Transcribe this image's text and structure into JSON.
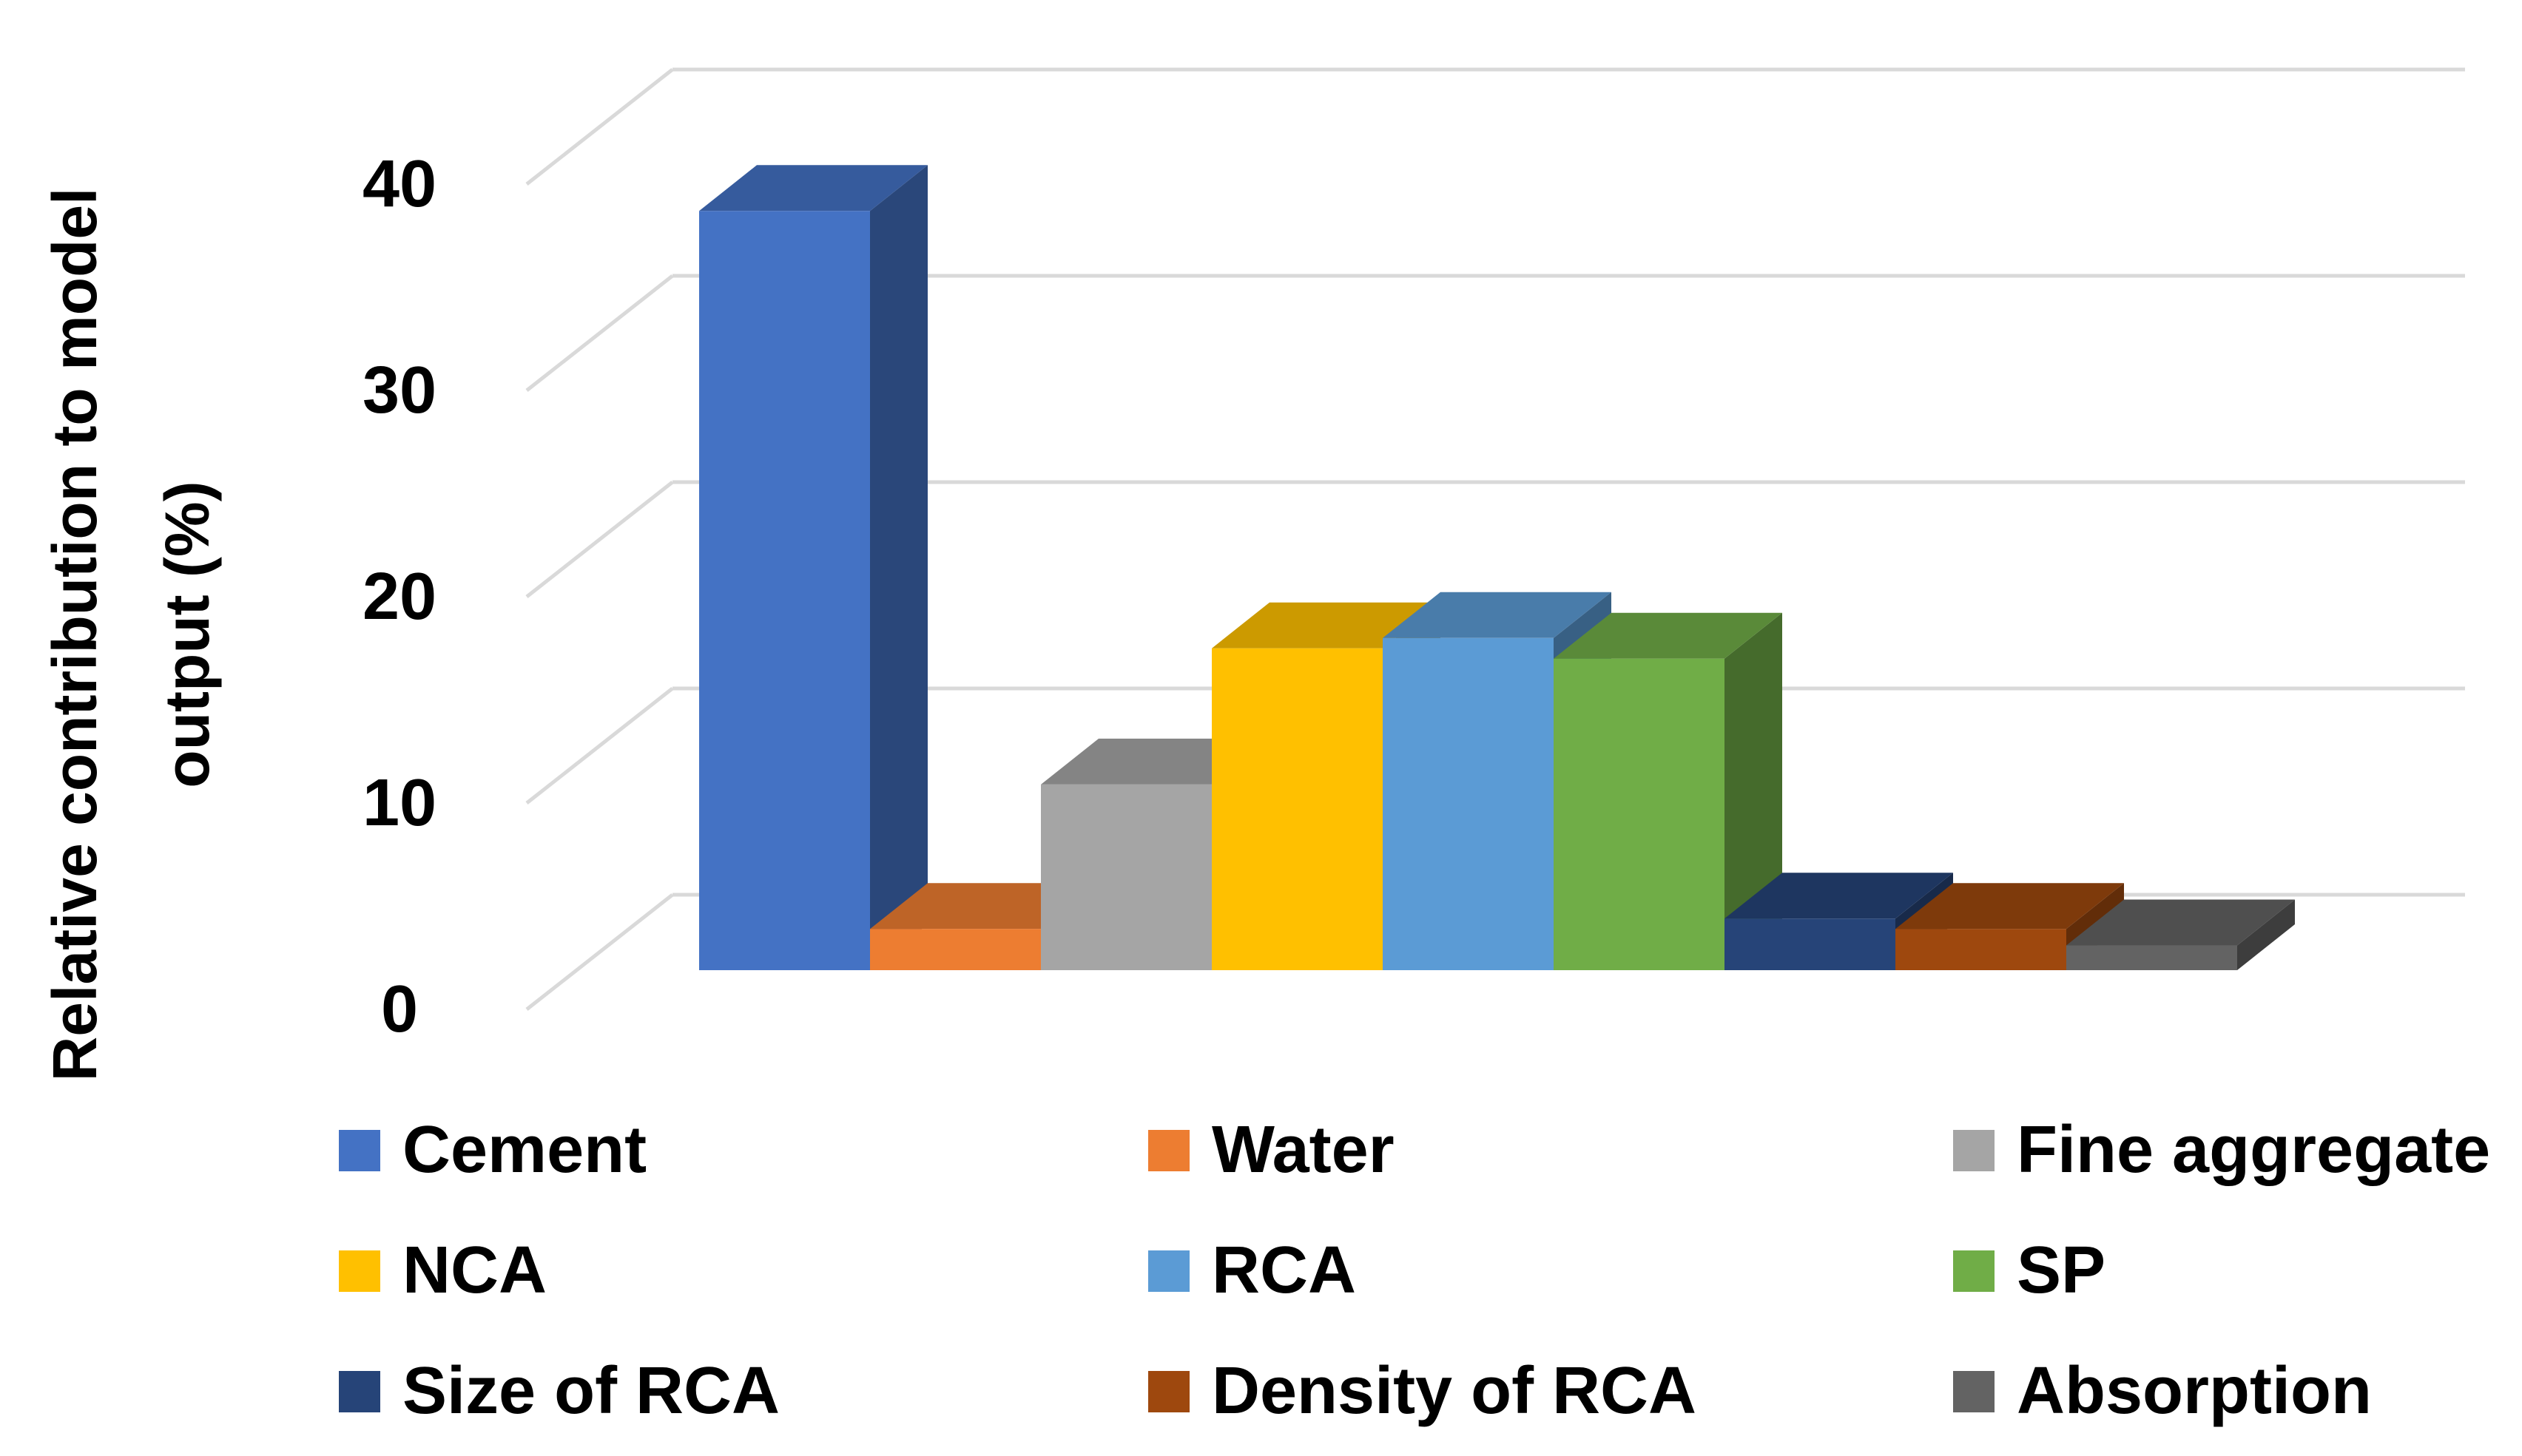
{
  "chart_data": {
    "type": "bar",
    "style": "3d-column",
    "title": "",
    "xlabel": "",
    "ylabel_lines": [
      "Relative contribution to model",
      "output (%)"
    ],
    "ylim": [
      0,
      40
    ],
    "y_ticks": [
      "0",
      "10",
      "20",
      "30",
      "40"
    ],
    "gridlines": true,
    "legend_position": "bottom",
    "categories": [
      "Cement",
      "Water",
      "Fine aggregate",
      "NCA",
      "RCA",
      "SP",
      "Size of RCA",
      "Density of RCA",
      "Absorption"
    ],
    "values": [
      36.8,
      2.0,
      9.0,
      15.6,
      16.1,
      15.1,
      2.5,
      2.0,
      1.2
    ],
    "colors": [
      "#4472C4",
      "#ED7D31",
      "#A5A5A5",
      "#FFC000",
      "#5B9BD5",
      "#70AD47",
      "#264478",
      "#9E480E",
      "#636363"
    ]
  }
}
